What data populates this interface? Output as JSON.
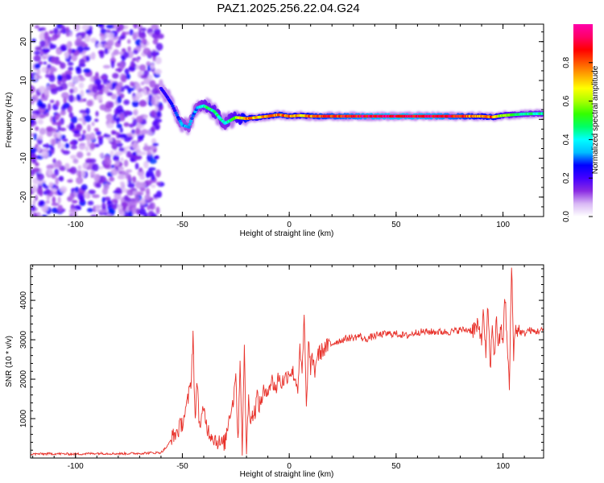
{
  "title": "PAZ1.2025.256.22.04.G24",
  "chart_data": [
    {
      "type": "heatmap",
      "title": "",
      "xlabel": "Height of straight line (km)",
      "ylabel": "Frequency (Hz)",
      "xlim": [
        -121,
        119
      ],
      "ylim": [
        -25,
        24.5
      ],
      "xticks": [
        -100,
        -50,
        0,
        50,
        100
      ],
      "yticks": [
        -20,
        -10,
        0,
        10,
        20
      ],
      "colorbar": {
        "label": "Normalized spectral amplitude",
        "range": [
          0,
          1
        ],
        "ticks": [
          "0.0",
          "0.2",
          "0.4",
          "0.6",
          "0.8"
        ],
        "colors": [
          "#ffffff",
          "#d9b8f5",
          "#8a2be2",
          "#4400ff",
          "#0000ff",
          "#00bfff",
          "#00ffff",
          "#00ff66",
          "#33ff00",
          "#aaff00",
          "#ffff00",
          "#ffaa00",
          "#ff5500",
          "#ff0000",
          "#ff0066",
          "#ff00aa"
        ]
      },
      "noise_region": {
        "x": [
          -121,
          -60
        ],
        "freq": [
          -25,
          24.5
        ],
        "amplitude": [
          0.05,
          0.3
        ]
      },
      "ridge": [
        {
          "x": -60,
          "f": 8.0,
          "amp": 0.22
        },
        {
          "x": -58,
          "f": 6.5,
          "amp": 0.25
        },
        {
          "x": -55,
          "f": 4.0,
          "amp": 0.25
        },
        {
          "x": -52,
          "f": 0.5,
          "amp": 0.3
        },
        {
          "x": -50,
          "f": -1.5,
          "amp": 0.35
        },
        {
          "x": -47,
          "f": -2.0,
          "amp": 0.35
        },
        {
          "x": -45,
          "f": 1.0,
          "amp": 0.3
        },
        {
          "x": -43,
          "f": 3.0,
          "amp": 0.35
        },
        {
          "x": -40,
          "f": 3.5,
          "amp": 0.45
        },
        {
          "x": -35,
          "f": 2.0,
          "amp": 0.5
        },
        {
          "x": -32,
          "f": 0.0,
          "amp": 0.45
        },
        {
          "x": -30,
          "f": -1.0,
          "amp": 0.4
        },
        {
          "x": -25,
          "f": 0.5,
          "amp": 0.55
        },
        {
          "x": -20,
          "f": 0.2,
          "amp": 0.8
        },
        {
          "x": -15,
          "f": 0.5,
          "amp": 0.7
        },
        {
          "x": -10,
          "f": 0.8,
          "amp": 0.75
        },
        {
          "x": -5,
          "f": 1.2,
          "amp": 0.8
        },
        {
          "x": 0,
          "f": 0.8,
          "amp": 0.8
        },
        {
          "x": 5,
          "f": 1.0,
          "amp": 0.7
        },
        {
          "x": 10,
          "f": 0.8,
          "amp": 0.8
        },
        {
          "x": 20,
          "f": 0.8,
          "amp": 0.85
        },
        {
          "x": 30,
          "f": 0.8,
          "amp": 0.9
        },
        {
          "x": 40,
          "f": 0.8,
          "amp": 0.95
        },
        {
          "x": 50,
          "f": 0.8,
          "amp": 0.97
        },
        {
          "x": 60,
          "f": 0.8,
          "amp": 0.95
        },
        {
          "x": 70,
          "f": 0.8,
          "amp": 0.93
        },
        {
          "x": 80,
          "f": 0.8,
          "amp": 0.85
        },
        {
          "x": 90,
          "f": 0.8,
          "amp": 0.75
        },
        {
          "x": 95,
          "f": 0.6,
          "amp": 0.8
        },
        {
          "x": 100,
          "f": 1.0,
          "amp": 0.6
        },
        {
          "x": 105,
          "f": 1.2,
          "amp": 0.5
        },
        {
          "x": 110,
          "f": 1.4,
          "amp": 0.45
        },
        {
          "x": 119,
          "f": 1.5,
          "amp": 0.45
        }
      ]
    },
    {
      "type": "line",
      "title": "",
      "xlabel": "Height of straight line (km)",
      "ylabel": "SNR (10 * v/v)",
      "xlim": [
        -121,
        119
      ],
      "ylim": [
        0,
        4900
      ],
      "xticks": [
        -100,
        -50,
        0,
        50,
        100
      ],
      "yticks": [
        1000,
        2000,
        3000,
        4000
      ],
      "color": "#e8312a",
      "series": [
        {
          "x": [
            -121,
            -110,
            -100,
            -90,
            -80,
            -70,
            -60,
            -57,
            -55,
            -52,
            -50,
            -48,
            -46,
            -45,
            -44,
            -43,
            -42,
            -40,
            -38,
            -35,
            -32,
            -30,
            -28,
            -26,
            -25,
            -24,
            -23,
            -22,
            -21,
            -20,
            -19,
            -18,
            -16,
            -15,
            -14,
            -13,
            -12,
            -11,
            -10,
            -8,
            -6,
            -5,
            -4,
            -2,
            0,
            2,
            4,
            5,
            6,
            7,
            8,
            9,
            10,
            11,
            12,
            13,
            15,
            17,
            20,
            22,
            25,
            28,
            30,
            33,
            35,
            40,
            45,
            50,
            55,
            60,
            65,
            70,
            75,
            80,
            85,
            88,
            90,
            91,
            92,
            93,
            94,
            95,
            96,
            97,
            98,
            99,
            100,
            101,
            102,
            103,
            104,
            105,
            106,
            108,
            110,
            112,
            115,
            119
          ],
          "y": [
            100,
            110,
            100,
            120,
            110,
            120,
            140,
            300,
            500,
            700,
            900,
            1300,
            1900,
            3150,
            900,
            2000,
            800,
            1200,
            700,
            500,
            350,
            400,
            1100,
            1500,
            2300,
            300,
            2550,
            250,
            2700,
            200,
            1500,
            1000,
            1200,
            1600,
            1300,
            1500,
            1700,
            1550,
            1800,
            1950,
            1750,
            2100,
            1900,
            2000,
            2200,
            2150,
            1800,
            2700,
            2100,
            3600,
            1200,
            2900,
            2300,
            2500,
            2200,
            2600,
            2700,
            2800,
            2900,
            2950,
            3000,
            3050,
            3050,
            3100,
            3000,
            3100,
            3150,
            3150,
            3100,
            3200,
            3200,
            3200,
            3200,
            3250,
            3250,
            3300,
            3100,
            3700,
            2500,
            3900,
            2200,
            3400,
            2600,
            3500,
            2800,
            3300,
            3000,
            4100,
            2800,
            1800,
            4900,
            2700,
            3300,
            3200,
            3150,
            3250,
            3200,
            3250
          ]
        }
      ]
    }
  ]
}
